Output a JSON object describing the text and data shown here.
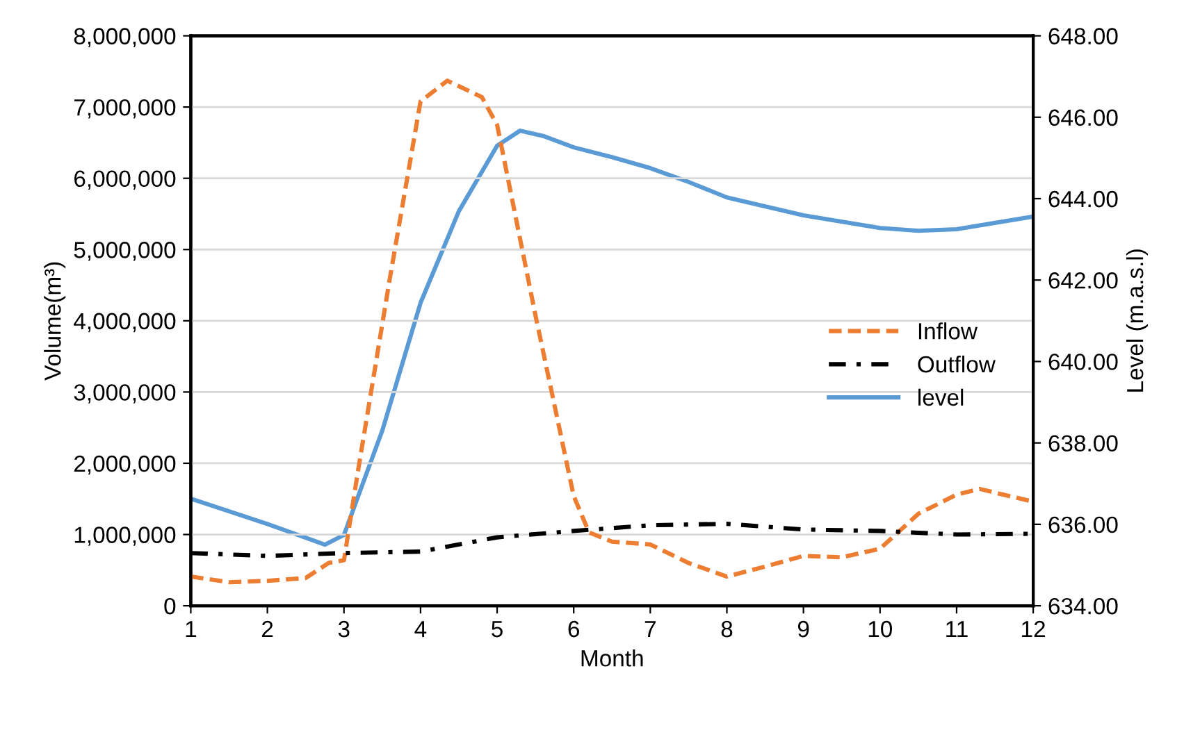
{
  "chart_data": {
    "type": "line",
    "xlabel": "Month",
    "ylabel": "Volume(m³)",
    "y2label": "Level (m.a.s.l)",
    "xlim": [
      1,
      12
    ],
    "xticks": [
      1,
      2,
      3,
      4,
      5,
      6,
      7,
      8,
      9,
      10,
      11,
      12
    ],
    "ylim": [
      0,
      8000000
    ],
    "yticks": [
      {
        "value": 0,
        "label": "0"
      },
      {
        "value": 1000000,
        "label": "1,000,000"
      },
      {
        "value": 2000000,
        "label": "2,000,000"
      },
      {
        "value": 3000000,
        "label": "3,000,000"
      },
      {
        "value": 4000000,
        "label": "4,000,000"
      },
      {
        "value": 5000000,
        "label": "5,000,000"
      },
      {
        "value": 6000000,
        "label": "6,000,000"
      },
      {
        "value": 7000000,
        "label": "7,000,000"
      },
      {
        "value": 8000000,
        "label": "8,000,000"
      }
    ],
    "y2lim": [
      634,
      648
    ],
    "y2ticks": [
      {
        "value": 634,
        "label": "634.00"
      },
      {
        "value": 636,
        "label": "636.00"
      },
      {
        "value": 638,
        "label": "638.00"
      },
      {
        "value": 640,
        "label": "640.00"
      },
      {
        "value": 642,
        "label": "642.00"
      },
      {
        "value": 644,
        "label": "644.00"
      },
      {
        "value": 646,
        "label": "646.00"
      },
      {
        "value": 648,
        "label": "648.00"
      }
    ],
    "grid": "y",
    "legend": "right",
    "series": [
      {
        "name": "Inflow",
        "color": "#ed7d31",
        "line_style": "dashed",
        "x": [
          1,
          1.5,
          2,
          2.5,
          2.8,
          3,
          3.18,
          3.6,
          4,
          4.35,
          4.8,
          5,
          5.5,
          6,
          6.2,
          6.5,
          7,
          7.5,
          8,
          8.5,
          9,
          9.5,
          10,
          10.5,
          11,
          11.3,
          12
        ],
        "values": [
          410000,
          330000,
          350000,
          390000,
          600000,
          640000,
          1870000,
          4600000,
          7080000,
          7370000,
          7140000,
          6750000,
          4080000,
          1540000,
          1030000,
          900000,
          860000,
          600000,
          410000,
          550000,
          700000,
          680000,
          800000,
          1290000,
          1560000,
          1640000,
          1460000
        ]
      },
      {
        "name": "Outflow",
        "color": "#000000",
        "line_style": "dashdot",
        "x": [
          1,
          2,
          3,
          4,
          5,
          6,
          7,
          8,
          9,
          10,
          11,
          12
        ],
        "values": [
          740000,
          700000,
          740000,
          760000,
          960000,
          1050000,
          1130000,
          1150000,
          1070000,
          1050000,
          1000000,
          1010000
        ]
      },
      {
        "name": "level",
        "color": "#5b9bd5",
        "line_style": "solid",
        "axis": "y2",
        "x": [
          1,
          1.5,
          2,
          2.5,
          2.75,
          3,
          3.5,
          4,
          4.5,
          5,
          5.3,
          5.6,
          6,
          6.5,
          7,
          7.5,
          8,
          9,
          10,
          10.5,
          11,
          12
        ],
        "values": [
          636.63,
          636.32,
          636.01,
          635.67,
          635.5,
          635.74,
          638.3,
          641.44,
          643.69,
          645.3,
          645.67,
          645.54,
          645.26,
          645.02,
          644.75,
          644.41,
          644.03,
          643.59,
          643.28,
          643.21,
          643.25,
          643.56
        ]
      }
    ]
  }
}
